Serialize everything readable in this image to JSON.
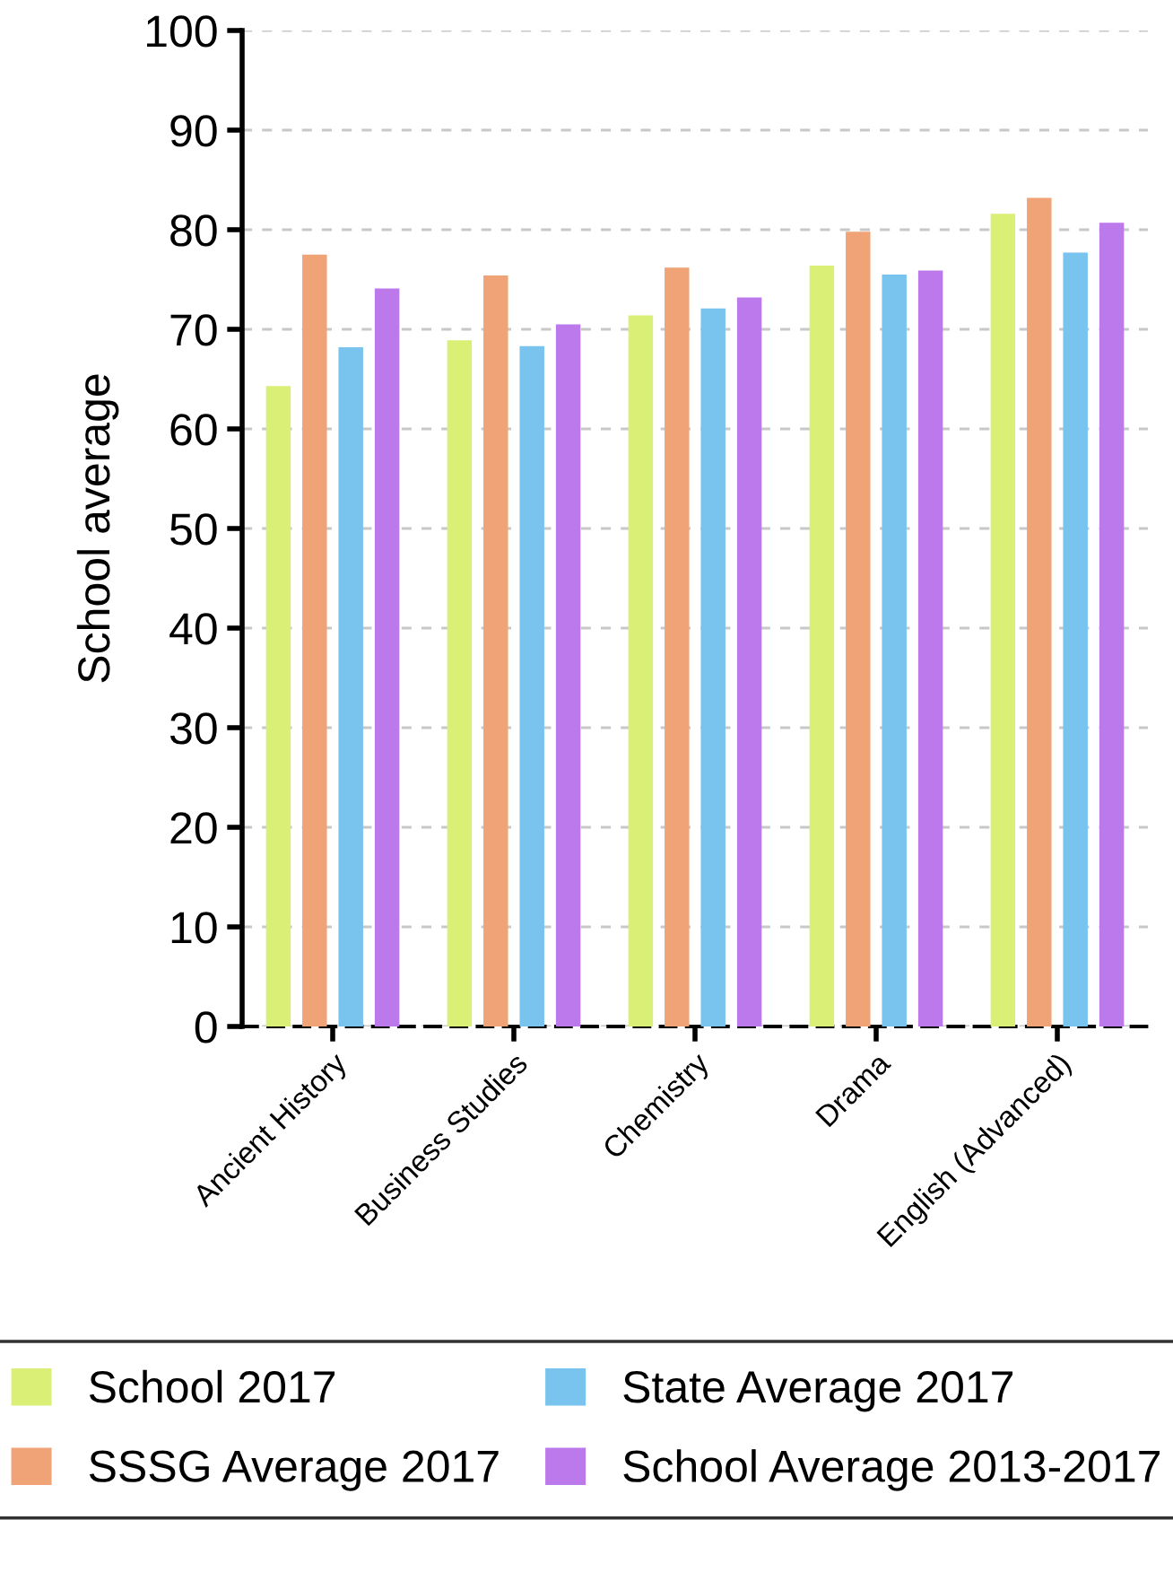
{
  "chart_data": {
    "type": "bar",
    "ylabel": "School average",
    "categories": [
      "Ancient History",
      "Business Studies",
      "Chemistry",
      "Drama",
      "English (Advanced)"
    ],
    "series": [
      {
        "name": "School 2017",
        "color": "#d9ef75",
        "values": [
          64.3,
          68.9,
          71.4,
          76.4,
          81.6
        ]
      },
      {
        "name": "SSSG Average 2017",
        "color": "#efa377",
        "values": [
          77.5,
          75.4,
          76.2,
          79.8,
          83.2
        ]
      },
      {
        "name": "State Average 2017",
        "color": "#78c4ee",
        "values": [
          68.2,
          68.3,
          72.1,
          75.5,
          77.7
        ]
      },
      {
        "name": "School Average 2013-2017",
        "color": "#bb79ec",
        "values": [
          74.1,
          70.5,
          73.2,
          75.9,
          80.7
        ]
      }
    ],
    "ylim": [
      0,
      100
    ],
    "yticks": [
      0,
      10,
      20,
      30,
      40,
      50,
      60,
      70,
      80,
      90,
      100
    ],
    "grid": "y",
    "legend": "bottom"
  }
}
